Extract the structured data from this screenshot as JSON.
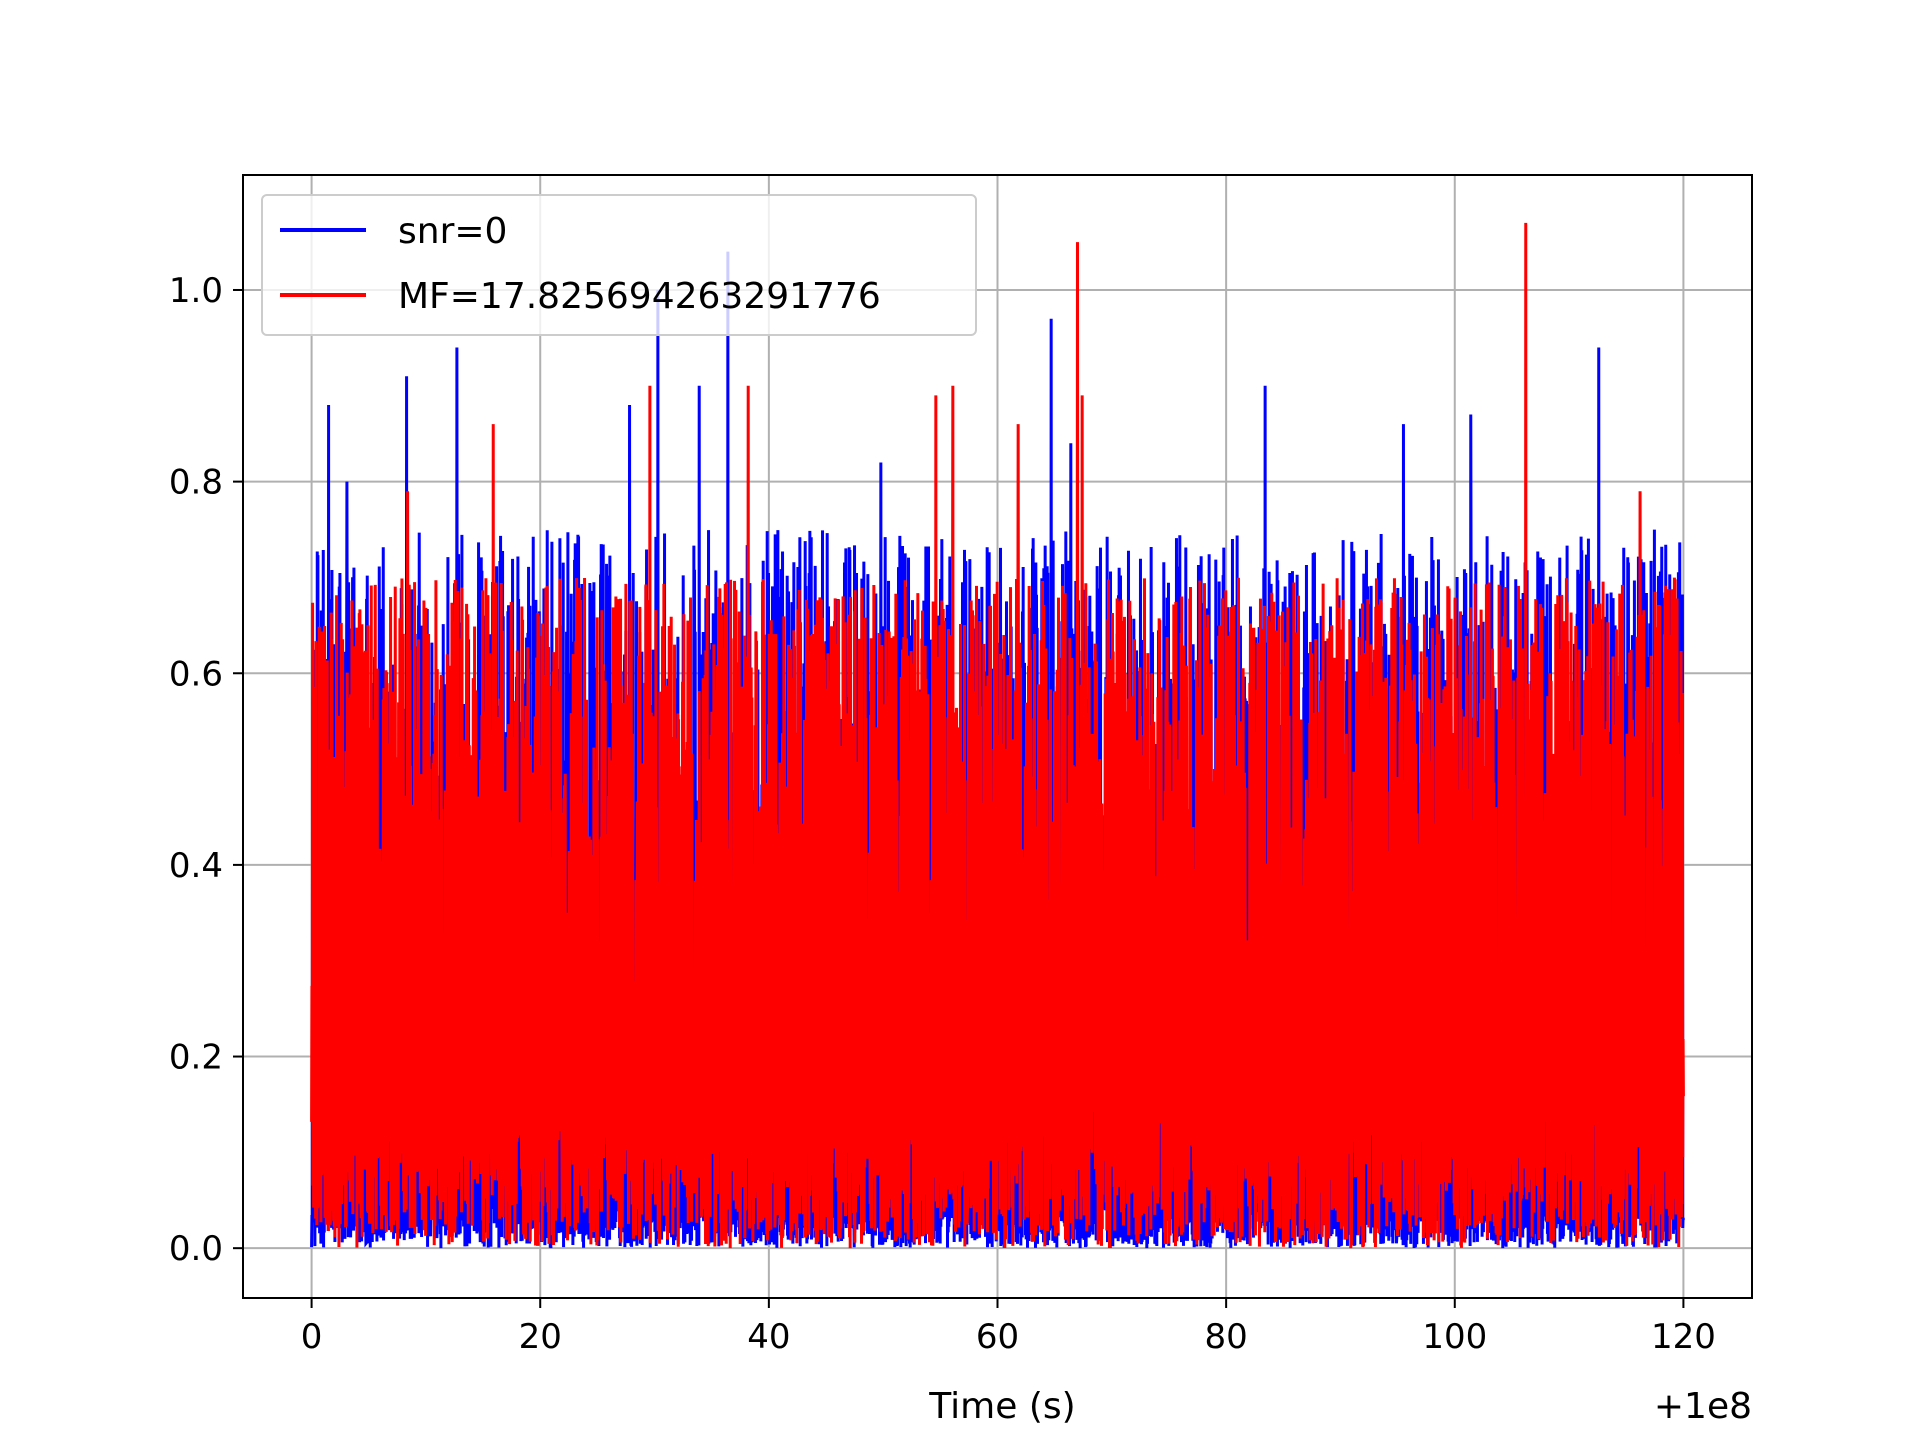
{
  "chart_data": {
    "type": "line",
    "title": "",
    "xlabel": "Time (s)",
    "ylabel": "",
    "x_offset_label": "+1e8",
    "xlim": [
      -6.0,
      126.0
    ],
    "ylim": [
      -0.052,
      1.12
    ],
    "x_ticks": [
      0,
      20,
      40,
      60,
      80,
      100,
      120
    ],
    "x_tick_labels": [
      "0",
      "20",
      "40",
      "60",
      "80",
      "100",
      "120"
    ],
    "y_ticks": [
      0.0,
      0.2,
      0.4,
      0.6,
      0.8,
      1.0
    ],
    "y_tick_labels": [
      "0.0",
      "0.2",
      "0.4",
      "0.6",
      "0.8",
      "1.0"
    ],
    "grid": true,
    "legend_position": "top-left",
    "series": [
      {
        "name": "snr=0",
        "color": "#0000ff",
        "x_range": [
          0,
          120
        ],
        "peaks": [
          {
            "x": 1.5,
            "y": 0.88
          },
          {
            "x": 3.1,
            "y": 0.8
          },
          {
            "x": 8.3,
            "y": 0.91
          },
          {
            "x": 12.7,
            "y": 0.94
          },
          {
            "x": 27.8,
            "y": 0.88
          },
          {
            "x": 30.3,
            "y": 1.0
          },
          {
            "x": 33.9,
            "y": 0.9
          },
          {
            "x": 36.4,
            "y": 1.04
          },
          {
            "x": 49.8,
            "y": 0.82
          },
          {
            "x": 64.7,
            "y": 0.97
          },
          {
            "x": 66.4,
            "y": 0.84
          },
          {
            "x": 83.4,
            "y": 0.9
          },
          {
            "x": 95.5,
            "y": 0.86
          },
          {
            "x": 101.4,
            "y": 0.87
          },
          {
            "x": 112.6,
            "y": 0.94
          }
        ]
      },
      {
        "name": "MF=17.825694263291776",
        "color": "#ff0000",
        "x_range": [
          0,
          120
        ],
        "peaks": [
          {
            "x": 8.4,
            "y": 0.79
          },
          {
            "x": 15.9,
            "y": 0.86
          },
          {
            "x": 29.6,
            "y": 0.9
          },
          {
            "x": 38.2,
            "y": 0.9
          },
          {
            "x": 54.6,
            "y": 0.89
          },
          {
            "x": 56.1,
            "y": 0.9
          },
          {
            "x": 61.8,
            "y": 0.86
          },
          {
            "x": 67.0,
            "y": 1.05
          },
          {
            "x": 67.4,
            "y": 0.89
          },
          {
            "x": 106.2,
            "y": 1.07
          },
          {
            "x": 116.2,
            "y": 0.79
          }
        ]
      }
    ]
  }
}
